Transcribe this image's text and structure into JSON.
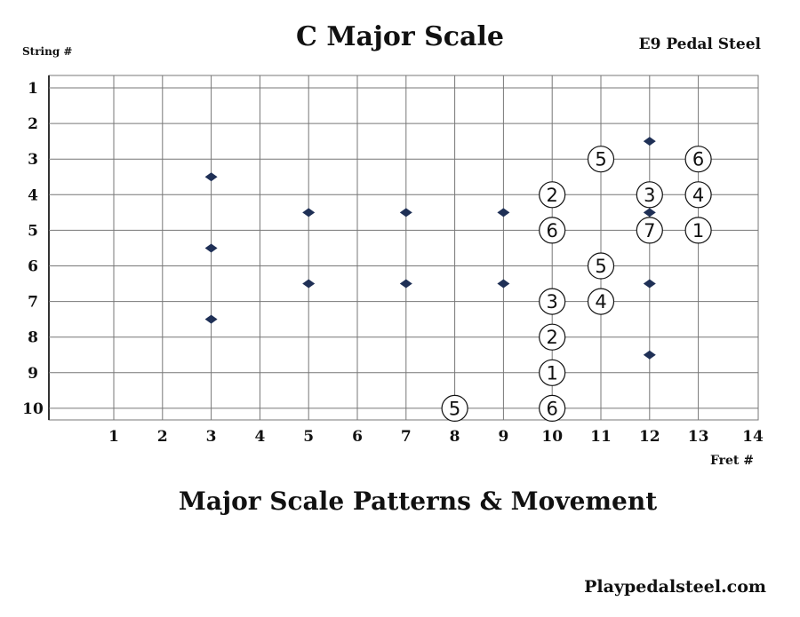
{
  "header": {
    "title": "C Major Scale",
    "string_label": "String #",
    "instrument": "E9 Pedal Steel",
    "fret_label": "Fret #"
  },
  "footer": {
    "subtitle": "Major Scale Patterns & Movement",
    "site": "Playpedalsteel.com"
  },
  "fretboard": {
    "strings": [
      "1",
      "2",
      "3",
      "4",
      "5",
      "6",
      "7",
      "8",
      "9",
      "10"
    ],
    "frets": [
      "1",
      "2",
      "3",
      "4",
      "5",
      "6",
      "7",
      "8",
      "9",
      "10",
      "11",
      "12",
      "13",
      "14"
    ],
    "colors": {
      "grid": "#777777",
      "marker": "#1f3056",
      "note_ring": "#111111"
    },
    "position_markers": [
      {
        "fret": 3,
        "string": 3.5
      },
      {
        "fret": 3,
        "string": 5.5
      },
      {
        "fret": 3,
        "string": 7.5
      },
      {
        "fret": 5,
        "string": 4.5
      },
      {
        "fret": 5,
        "string": 6.5
      },
      {
        "fret": 7,
        "string": 4.5
      },
      {
        "fret": 7,
        "string": 6.5
      },
      {
        "fret": 9,
        "string": 4.5
      },
      {
        "fret": 9,
        "string": 6.5
      },
      {
        "fret": 12,
        "string": 2.5
      },
      {
        "fret": 12,
        "string": 4.5
      },
      {
        "fret": 12,
        "string": 6.5
      },
      {
        "fret": 12,
        "string": 8.5
      }
    ],
    "notes": [
      {
        "fret": 11,
        "string": 3,
        "degree": "5"
      },
      {
        "fret": 13,
        "string": 3,
        "degree": "6"
      },
      {
        "fret": 10,
        "string": 4,
        "degree": "2"
      },
      {
        "fret": 12,
        "string": 4,
        "degree": "3"
      },
      {
        "fret": 13,
        "string": 4,
        "degree": "4"
      },
      {
        "fret": 10,
        "string": 5,
        "degree": "6"
      },
      {
        "fret": 12,
        "string": 5,
        "degree": "7"
      },
      {
        "fret": 13,
        "string": 5,
        "degree": "1"
      },
      {
        "fret": 11,
        "string": 6,
        "degree": "5"
      },
      {
        "fret": 10,
        "string": 7,
        "degree": "3"
      },
      {
        "fret": 11,
        "string": 7,
        "degree": "4"
      },
      {
        "fret": 10,
        "string": 8,
        "degree": "2"
      },
      {
        "fret": 10,
        "string": 9,
        "degree": "1"
      },
      {
        "fret": 8,
        "string": 10,
        "degree": "5"
      },
      {
        "fret": 10,
        "string": 10,
        "degree": "6"
      }
    ]
  }
}
